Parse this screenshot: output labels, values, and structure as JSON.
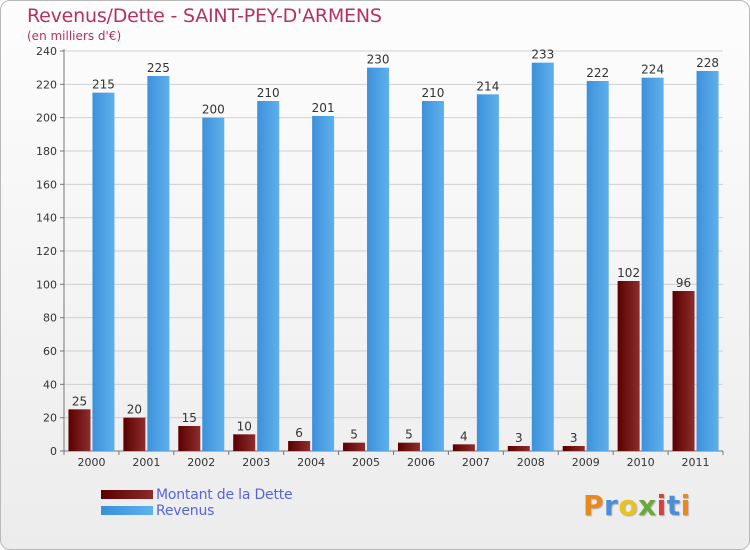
{
  "header": {
    "title": "Revenus/Dette - SAINT-PEY-D'ARMENS",
    "subtitle": "(en milliers d'€)"
  },
  "legend": {
    "debt_label": "Montant de la Dette",
    "revenue_label": "Revenus"
  },
  "logo": {
    "text": "Proxiti",
    "letter_colors": [
      "#e8891f",
      "#4d8fd6",
      "#e8c21f",
      "#6aa83a",
      "#d6423a",
      "#4d8fd6",
      "#e8891f"
    ]
  },
  "colors": {
    "debt": "#7a1515",
    "revenue": "#4a9fe6",
    "title": "#b5325e",
    "legend_text": "#5566dd"
  },
  "chart_data": {
    "type": "bar",
    "title": "Revenus/Dette - SAINT-PEY-D'ARMENS",
    "subtitle": "(en milliers d'€)",
    "xlabel": "",
    "ylabel": "",
    "categories": [
      "2000",
      "2001",
      "2002",
      "2003",
      "2004",
      "2005",
      "2006",
      "2007",
      "2008",
      "2009",
      "2010",
      "2011"
    ],
    "series": [
      {
        "name": "Montant de la Dette",
        "values": [
          25,
          20,
          15,
          10,
          6,
          5,
          5,
          4,
          3,
          3,
          102,
          96
        ]
      },
      {
        "name": "Revenus",
        "values": [
          215,
          225,
          200,
          210,
          201,
          230,
          210,
          214,
          233,
          222,
          224,
          228
        ]
      }
    ],
    "ylim": [
      0,
      240
    ],
    "yticks": [
      0,
      20,
      40,
      60,
      80,
      100,
      120,
      140,
      160,
      180,
      200,
      220,
      240
    ],
    "grid": true,
    "legend_position": "bottom-left"
  }
}
